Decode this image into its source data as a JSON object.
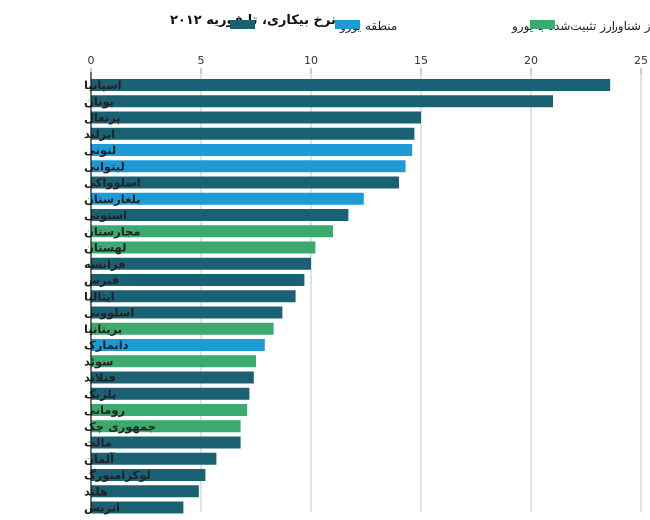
{
  "chart_data": {
    "type": "bar",
    "orientation": "horizontal",
    "title": "نرخ بیکاری، تا فوریه ۲۰۱۲",
    "xlim": [
      0,
      25
    ],
    "xticks": [
      "0",
      "5",
      "10",
      "15",
      "20",
      "25"
    ],
    "grid": true,
    "legend_position": "top",
    "legend": [
      {
        "key": "euro",
        "label": "منطقه یورو",
        "color": "#1b6174"
      },
      {
        "key": "peg",
        "label": "ارز تثبیت‌شده با یورو",
        "color": "#1e9bd7"
      },
      {
        "key": "float",
        "label": "ارز شناور",
        "color": "#3aaa6e"
      }
    ],
    "categories": [
      "اسپانیا",
      "یونان",
      "پرتغال",
      "ایرلند",
      "لتونی",
      "لیتوانی",
      "اسلوواکی",
      "بلغارستان",
      "استونی",
      "مجارستان",
      "لهستان",
      "فرانسه",
      "قبرس",
      "ایتالیا",
      "اسلوونی",
      "بریتانیا",
      "دانمارک",
      "سوئد",
      "فنلاند",
      "بلژیک",
      "رومانی",
      "جمهوری چک",
      "مالت",
      "آلمان",
      "لوکزامبورگ",
      "هلند",
      "اتریش"
    ],
    "values": [
      23.6,
      21.0,
      15.0,
      14.7,
      14.6,
      14.3,
      14.0,
      12.4,
      11.7,
      11.0,
      10.2,
      10.0,
      9.7,
      9.3,
      8.7,
      8.3,
      7.9,
      7.5,
      7.4,
      7.2,
      7.1,
      6.8,
      6.8,
      5.7,
      5.2,
      4.9,
      4.2
    ],
    "groups": [
      "euro",
      "euro",
      "euro",
      "euro",
      "peg",
      "peg",
      "euro",
      "peg",
      "euro",
      "float",
      "float",
      "euro",
      "euro",
      "euro",
      "euro",
      "float",
      "peg",
      "float",
      "euro",
      "euro",
      "float",
      "float",
      "euro",
      "euro",
      "euro",
      "euro",
      "euro"
    ]
  }
}
